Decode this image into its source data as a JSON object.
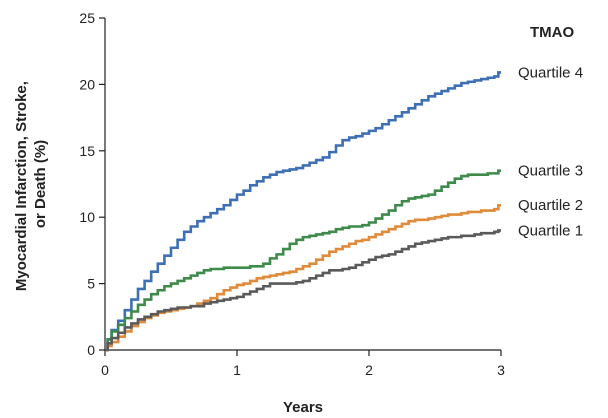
{
  "chart_data": {
    "type": "line",
    "step": true,
    "xlabel": "Years",
    "ylabel_lines": [
      "Myocardial Infarction, Stroke,",
      "or Death (%)"
    ],
    "xlim": [
      0,
      3
    ],
    "ylim": [
      0,
      25
    ],
    "x_ticks": [
      0,
      1,
      2,
      3
    ],
    "y_ticks": [
      0,
      5,
      10,
      15,
      20,
      25
    ],
    "grid": false,
    "legend_title": "TMAO",
    "legend_placement": "right-of-line-ends",
    "series": [
      {
        "name": "Quartile 4",
        "color": "#3d6fb5",
        "points": [
          [
            0,
            0
          ],
          [
            0.02,
            0.8
          ],
          [
            0.05,
            1.5
          ],
          [
            0.1,
            2.2
          ],
          [
            0.15,
            3.0
          ],
          [
            0.2,
            3.8
          ],
          [
            0.25,
            4.6
          ],
          [
            0.3,
            5.2
          ],
          [
            0.35,
            5.9
          ],
          [
            0.4,
            6.5
          ],
          [
            0.45,
            7.1
          ],
          [
            0.5,
            7.7
          ],
          [
            0.55,
            8.3
          ],
          [
            0.6,
            8.9
          ],
          [
            0.65,
            9.3
          ],
          [
            0.7,
            9.7
          ],
          [
            0.75,
            10.0
          ],
          [
            0.8,
            10.3
          ],
          [
            0.85,
            10.6
          ],
          [
            0.9,
            10.9
          ],
          [
            0.95,
            11.3
          ],
          [
            1.0,
            11.7
          ],
          [
            1.05,
            12.0
          ],
          [
            1.1,
            12.4
          ],
          [
            1.15,
            12.7
          ],
          [
            1.2,
            13.0
          ],
          [
            1.25,
            13.2
          ],
          [
            1.3,
            13.4
          ],
          [
            1.35,
            13.5
          ],
          [
            1.4,
            13.6
          ],
          [
            1.45,
            13.7
          ],
          [
            1.5,
            13.9
          ],
          [
            1.55,
            14.1
          ],
          [
            1.6,
            14.3
          ],
          [
            1.65,
            14.5
          ],
          [
            1.7,
            14.9
          ],
          [
            1.75,
            15.4
          ],
          [
            1.8,
            15.8
          ],
          [
            1.85,
            16.0
          ],
          [
            1.9,
            16.1
          ],
          [
            1.95,
            16.3
          ],
          [
            2.0,
            16.5
          ],
          [
            2.05,
            16.7
          ],
          [
            2.1,
            17.0
          ],
          [
            2.15,
            17.3
          ],
          [
            2.2,
            17.6
          ],
          [
            2.25,
            17.9
          ],
          [
            2.3,
            18.2
          ],
          [
            2.35,
            18.5
          ],
          [
            2.4,
            18.8
          ],
          [
            2.45,
            19.1
          ],
          [
            2.5,
            19.3
          ],
          [
            2.55,
            19.5
          ],
          [
            2.6,
            19.7
          ],
          [
            2.65,
            19.9
          ],
          [
            2.7,
            20.1
          ],
          [
            2.75,
            20.2
          ],
          [
            2.8,
            20.3
          ],
          [
            2.85,
            20.4
          ],
          [
            2.9,
            20.5
          ],
          [
            2.95,
            20.6
          ],
          [
            2.98,
            20.9
          ],
          [
            3.0,
            20.9
          ]
        ]
      },
      {
        "name": "Quartile 3",
        "color": "#3d8a4a",
        "points": [
          [
            0,
            0
          ],
          [
            0.02,
            0.8
          ],
          [
            0.05,
            1.4
          ],
          [
            0.1,
            1.9
          ],
          [
            0.15,
            2.4
          ],
          [
            0.2,
            2.9
          ],
          [
            0.25,
            3.4
          ],
          [
            0.3,
            3.8
          ],
          [
            0.35,
            4.2
          ],
          [
            0.4,
            4.5
          ],
          [
            0.45,
            4.8
          ],
          [
            0.5,
            5.0
          ],
          [
            0.55,
            5.2
          ],
          [
            0.6,
            5.4
          ],
          [
            0.65,
            5.6
          ],
          [
            0.7,
            5.8
          ],
          [
            0.75,
            6.0
          ],
          [
            0.8,
            6.1
          ],
          [
            0.9,
            6.2
          ],
          [
            1.0,
            6.2
          ],
          [
            1.1,
            6.3
          ],
          [
            1.2,
            6.5
          ],
          [
            1.25,
            6.9
          ],
          [
            1.3,
            7.2
          ],
          [
            1.35,
            7.6
          ],
          [
            1.4,
            8.0
          ],
          [
            1.45,
            8.3
          ],
          [
            1.5,
            8.5
          ],
          [
            1.55,
            8.6
          ],
          [
            1.6,
            8.7
          ],
          [
            1.65,
            8.8
          ],
          [
            1.7,
            8.9
          ],
          [
            1.75,
            9.1
          ],
          [
            1.8,
            9.2
          ],
          [
            1.85,
            9.3
          ],
          [
            1.9,
            9.3
          ],
          [
            1.95,
            9.4
          ],
          [
            2.0,
            9.6
          ],
          [
            2.05,
            9.9
          ],
          [
            2.1,
            10.2
          ],
          [
            2.15,
            10.5
          ],
          [
            2.2,
            10.9
          ],
          [
            2.25,
            11.2
          ],
          [
            2.3,
            11.4
          ],
          [
            2.35,
            11.5
          ],
          [
            2.4,
            11.6
          ],
          [
            2.45,
            11.7
          ],
          [
            2.5,
            12.0
          ],
          [
            2.55,
            12.3
          ],
          [
            2.6,
            12.6
          ],
          [
            2.65,
            12.9
          ],
          [
            2.7,
            13.1
          ],
          [
            2.75,
            13.2
          ],
          [
            2.8,
            13.2
          ],
          [
            2.85,
            13.2
          ],
          [
            2.9,
            13.3
          ],
          [
            2.95,
            13.3
          ],
          [
            2.98,
            13.5
          ],
          [
            3.0,
            13.5
          ]
        ]
      },
      {
        "name": "Quartile 2",
        "color": "#e08a3a",
        "points": [
          [
            0,
            0
          ],
          [
            0.02,
            0.3
          ],
          [
            0.05,
            0.6
          ],
          [
            0.1,
            1.0
          ],
          [
            0.15,
            1.4
          ],
          [
            0.2,
            1.8
          ],
          [
            0.25,
            2.1
          ],
          [
            0.3,
            2.4
          ],
          [
            0.35,
            2.6
          ],
          [
            0.4,
            2.8
          ],
          [
            0.45,
            2.9
          ],
          [
            0.5,
            3.0
          ],
          [
            0.55,
            3.1
          ],
          [
            0.6,
            3.2
          ],
          [
            0.65,
            3.3
          ],
          [
            0.7,
            3.5
          ],
          [
            0.75,
            3.7
          ],
          [
            0.8,
            3.9
          ],
          [
            0.85,
            4.2
          ],
          [
            0.9,
            4.5
          ],
          [
            0.95,
            4.7
          ],
          [
            1.0,
            4.9
          ],
          [
            1.05,
            5.0
          ],
          [
            1.1,
            5.2
          ],
          [
            1.15,
            5.4
          ],
          [
            1.2,
            5.5
          ],
          [
            1.25,
            5.6
          ],
          [
            1.3,
            5.7
          ],
          [
            1.35,
            5.8
          ],
          [
            1.4,
            5.9
          ],
          [
            1.45,
            6.1
          ],
          [
            1.5,
            6.3
          ],
          [
            1.55,
            6.5
          ],
          [
            1.6,
            6.8
          ],
          [
            1.65,
            7.1
          ],
          [
            1.7,
            7.4
          ],
          [
            1.75,
            7.6
          ],
          [
            1.8,
            7.8
          ],
          [
            1.85,
            8.0
          ],
          [
            1.9,
            8.2
          ],
          [
            1.95,
            8.3
          ],
          [
            2.0,
            8.5
          ],
          [
            2.05,
            8.7
          ],
          [
            2.1,
            8.9
          ],
          [
            2.15,
            9.1
          ],
          [
            2.2,
            9.3
          ],
          [
            2.25,
            9.5
          ],
          [
            2.3,
            9.7
          ],
          [
            2.35,
            9.8
          ],
          [
            2.4,
            9.8
          ],
          [
            2.45,
            9.9
          ],
          [
            2.5,
            10.0
          ],
          [
            2.55,
            10.1
          ],
          [
            2.6,
            10.2
          ],
          [
            2.65,
            10.2
          ],
          [
            2.7,
            10.3
          ],
          [
            2.75,
            10.4
          ],
          [
            2.8,
            10.4
          ],
          [
            2.85,
            10.5
          ],
          [
            2.9,
            10.5
          ],
          [
            2.95,
            10.6
          ],
          [
            2.98,
            10.9
          ],
          [
            3.0,
            10.9
          ]
        ]
      },
      {
        "name": "Quartile 1",
        "color": "#5a5a5a",
        "points": [
          [
            0,
            0
          ],
          [
            0.02,
            0.5
          ],
          [
            0.05,
            0.9
          ],
          [
            0.1,
            1.3
          ],
          [
            0.15,
            1.7
          ],
          [
            0.2,
            2.0
          ],
          [
            0.25,
            2.3
          ],
          [
            0.3,
            2.5
          ],
          [
            0.35,
            2.7
          ],
          [
            0.4,
            2.9
          ],
          [
            0.45,
            3.0
          ],
          [
            0.5,
            3.1
          ],
          [
            0.55,
            3.2
          ],
          [
            0.6,
            3.2
          ],
          [
            0.65,
            3.3
          ],
          [
            0.7,
            3.3
          ],
          [
            0.75,
            3.5
          ],
          [
            0.8,
            3.6
          ],
          [
            0.85,
            3.7
          ],
          [
            0.9,
            3.8
          ],
          [
            0.95,
            3.9
          ],
          [
            1.0,
            4.0
          ],
          [
            1.05,
            4.2
          ],
          [
            1.1,
            4.4
          ],
          [
            1.15,
            4.6
          ],
          [
            1.2,
            4.8
          ],
          [
            1.25,
            5.0
          ],
          [
            1.3,
            5.0
          ],
          [
            1.35,
            5.0
          ],
          [
            1.4,
            5.0
          ],
          [
            1.45,
            5.1
          ],
          [
            1.5,
            5.2
          ],
          [
            1.55,
            5.4
          ],
          [
            1.6,
            5.6
          ],
          [
            1.65,
            5.8
          ],
          [
            1.7,
            6.0
          ],
          [
            1.75,
            6.0
          ],
          [
            1.8,
            6.1
          ],
          [
            1.85,
            6.2
          ],
          [
            1.9,
            6.4
          ],
          [
            1.95,
            6.6
          ],
          [
            2.0,
            6.8
          ],
          [
            2.05,
            7.0
          ],
          [
            2.1,
            7.1
          ],
          [
            2.15,
            7.2
          ],
          [
            2.2,
            7.4
          ],
          [
            2.25,
            7.6
          ],
          [
            2.3,
            7.8
          ],
          [
            2.35,
            8.0
          ],
          [
            2.4,
            8.1
          ],
          [
            2.45,
            8.2
          ],
          [
            2.5,
            8.3
          ],
          [
            2.55,
            8.4
          ],
          [
            2.6,
            8.5
          ],
          [
            2.65,
            8.5
          ],
          [
            2.7,
            8.6
          ],
          [
            2.75,
            8.6
          ],
          [
            2.8,
            8.7
          ],
          [
            2.85,
            8.8
          ],
          [
            2.9,
            8.8
          ],
          [
            2.95,
            8.9
          ],
          [
            2.98,
            9.0
          ],
          [
            3.0,
            9.0
          ]
        ]
      }
    ]
  }
}
